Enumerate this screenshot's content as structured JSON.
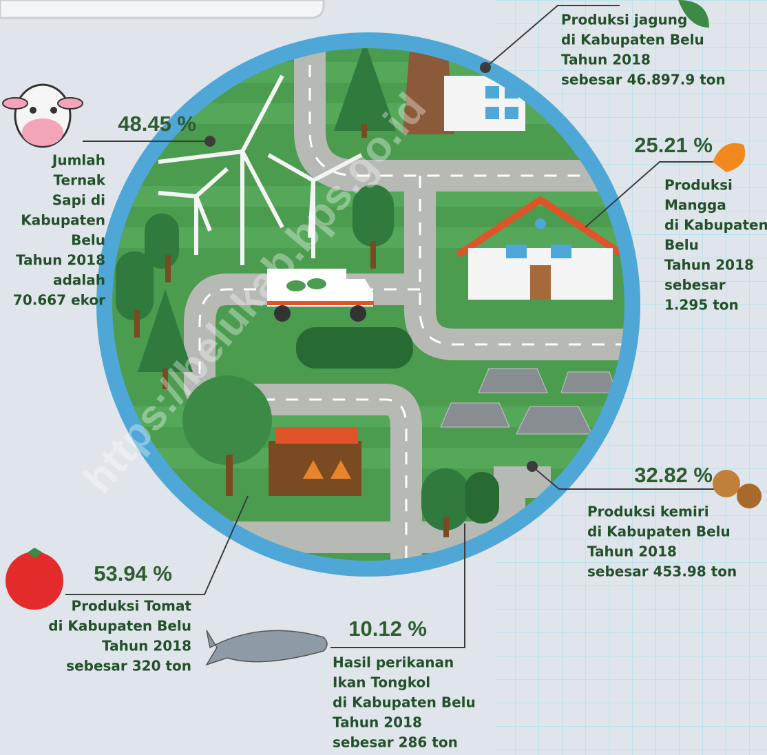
{
  "items": [
    {
      "percent": "48.45 %",
      "lines": [
        "Jumlah",
        "Ternak",
        "Sapi di",
        "Kabupaten",
        "Belu",
        "Tahun  2018",
        "adalah",
        "70.667   ekor"
      ]
    },
    {
      "lines": [
        "Produksi jagung",
        "di Kabupaten Belu",
        "Tahun  2018",
        "sebesar  46.897.9 ton"
      ]
    },
    {
      "percent": "25.21 %",
      "lines": [
        "Produksi",
        "Mangga",
        "di Kabupaten",
        "Belu",
        "Tahun 2018",
        "sebesar",
        "1.295  ton"
      ]
    },
    {
      "percent": "32.82 %",
      "lines": [
        "Produksi kemiri",
        "di Kabupaten Belu",
        "Tahun  2018",
        "sebesar  453.98  ton"
      ]
    },
    {
      "percent": "53.94 %",
      "lines": [
        "Produksi Tomat",
        "di Kabupaten Belu",
        "Tahun  2018",
        "sebesar  320  ton"
      ]
    },
    {
      "percent": "10.12 %",
      "lines": [
        "Hasil perikanan",
        "Ikan Tongkol",
        "di Kabupaten Belu",
        "Tahun  2018",
        "sebesar 286  ton"
      ]
    }
  ],
  "watermark": "https://belukab.bps.go.id"
}
